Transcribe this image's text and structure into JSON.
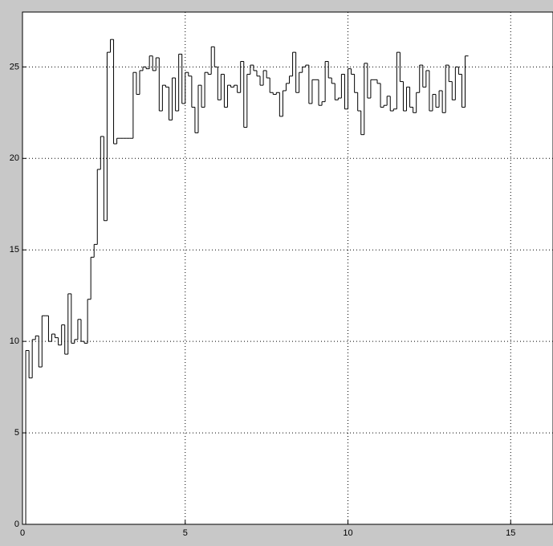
{
  "chart_data": {
    "type": "stairs",
    "x": [
      0,
      0.1,
      0.2,
      0.3,
      0.4,
      0.5,
      0.6,
      0.7,
      0.8,
      0.9,
      1,
      1.1,
      1.2,
      1.3,
      1.4,
      1.5,
      1.6,
      1.7,
      1.8,
      1.9,
      2,
      2.1,
      2.2,
      2.3,
      2.4,
      2.5,
      2.6,
      2.7,
      2.8,
      2.9,
      3,
      3.1,
      3.2,
      3.3,
      3.4,
      3.5,
      3.6,
      3.7,
      3.8,
      3.9,
      4,
      4.1,
      4.2,
      4.3,
      4.4,
      4.5,
      4.6,
      4.7,
      4.8,
      4.9,
      5,
      5.1,
      5.2,
      5.3,
      5.4,
      5.5,
      5.6,
      5.7,
      5.8,
      5.9,
      6,
      6.1,
      6.2,
      6.3,
      6.4,
      6.5,
      6.6,
      6.7,
      6.8,
      6.9,
      7,
      7.1,
      7.2,
      7.3,
      7.4,
      7.5,
      7.6,
      7.7,
      7.8,
      7.9,
      8,
      8.1,
      8.2,
      8.3,
      8.4,
      8.5,
      8.6,
      8.7,
      8.8,
      8.9,
      9,
      9.1,
      9.2,
      9.3,
      9.4,
      9.5,
      9.6,
      9.7,
      9.8,
      9.9,
      10,
      10.1,
      10.2,
      10.3,
      10.4,
      10.5,
      10.6,
      10.7,
      10.8,
      10.9,
      11,
      11.1,
      11.2,
      11.3,
      11.4,
      11.5,
      11.6,
      11.7,
      11.8,
      11.9,
      12,
      12.1,
      12.2,
      12.3,
      12.4,
      12.5,
      12.6,
      12.7,
      12.8,
      12.9,
      13,
      13.1,
      13.2,
      13.3,
      13.4,
      13.5,
      13.6
    ],
    "values": [
      0,
      9.5,
      8,
      10.1,
      10.3,
      8.6,
      11.4,
      11.4,
      10,
      10.4,
      10.2,
      9.8,
      10.9,
      9.3,
      12.6,
      9.9,
      10.1,
      11.2,
      10,
      9.9,
      12.3,
      14.6,
      15.3,
      19.4,
      21.2,
      16.6,
      25.8,
      26.5,
      20.8,
      21.1,
      21.1,
      21.1,
      21.1,
      21.1,
      24.7,
      23.5,
      24.8,
      25,
      24.9,
      25.6,
      24.8,
      25.5,
      22.6,
      24,
      23.9,
      22.1,
      24.4,
      22.6,
      25.7,
      23,
      24.7,
      24.5,
      22.8,
      21.4,
      24,
      22.8,
      24.7,
      24.6,
      26.1,
      25,
      23.2,
      24.6,
      22.8,
      24,
      23.9,
      24,
      23.6,
      25.3,
      21.7,
      24.6,
      25.1,
      24.8,
      24.5,
      24,
      24.8,
      24.4,
      23.6,
      23.5,
      23.6,
      22.3,
      23.7,
      24.1,
      24.5,
      25.8,
      23.6,
      24.7,
      25,
      25.1,
      23,
      24.3,
      24.3,
      22.9,
      23.1,
      25.3,
      24.4,
      24.1,
      23.2,
      23.3,
      24.6,
      22.7,
      24.9,
      24.6,
      23.6,
      22.6,
      21.3,
      25.2,
      23.3,
      24.3,
      24.3,
      24.1,
      22.8,
      22.9,
      23.4,
      22.6,
      22.7,
      25.8,
      24.2,
      22.6,
      23.9,
      22.8,
      22.5,
      23.6,
      25.1,
      23.9,
      24.8,
      22.6,
      23.5,
      22.8,
      23.7,
      22.5,
      25.1,
      24.2,
      23.2,
      25,
      24.6,
      22.8,
      25.6
    ],
    "color": "#000000",
    "xlim": [
      0,
      16.3
    ],
    "ylim": [
      0,
      28
    ],
    "xticks": [
      0,
      5,
      10,
      15
    ],
    "yticks": [
      0,
      5,
      10,
      15,
      20,
      25
    ],
    "grid": true
  }
}
